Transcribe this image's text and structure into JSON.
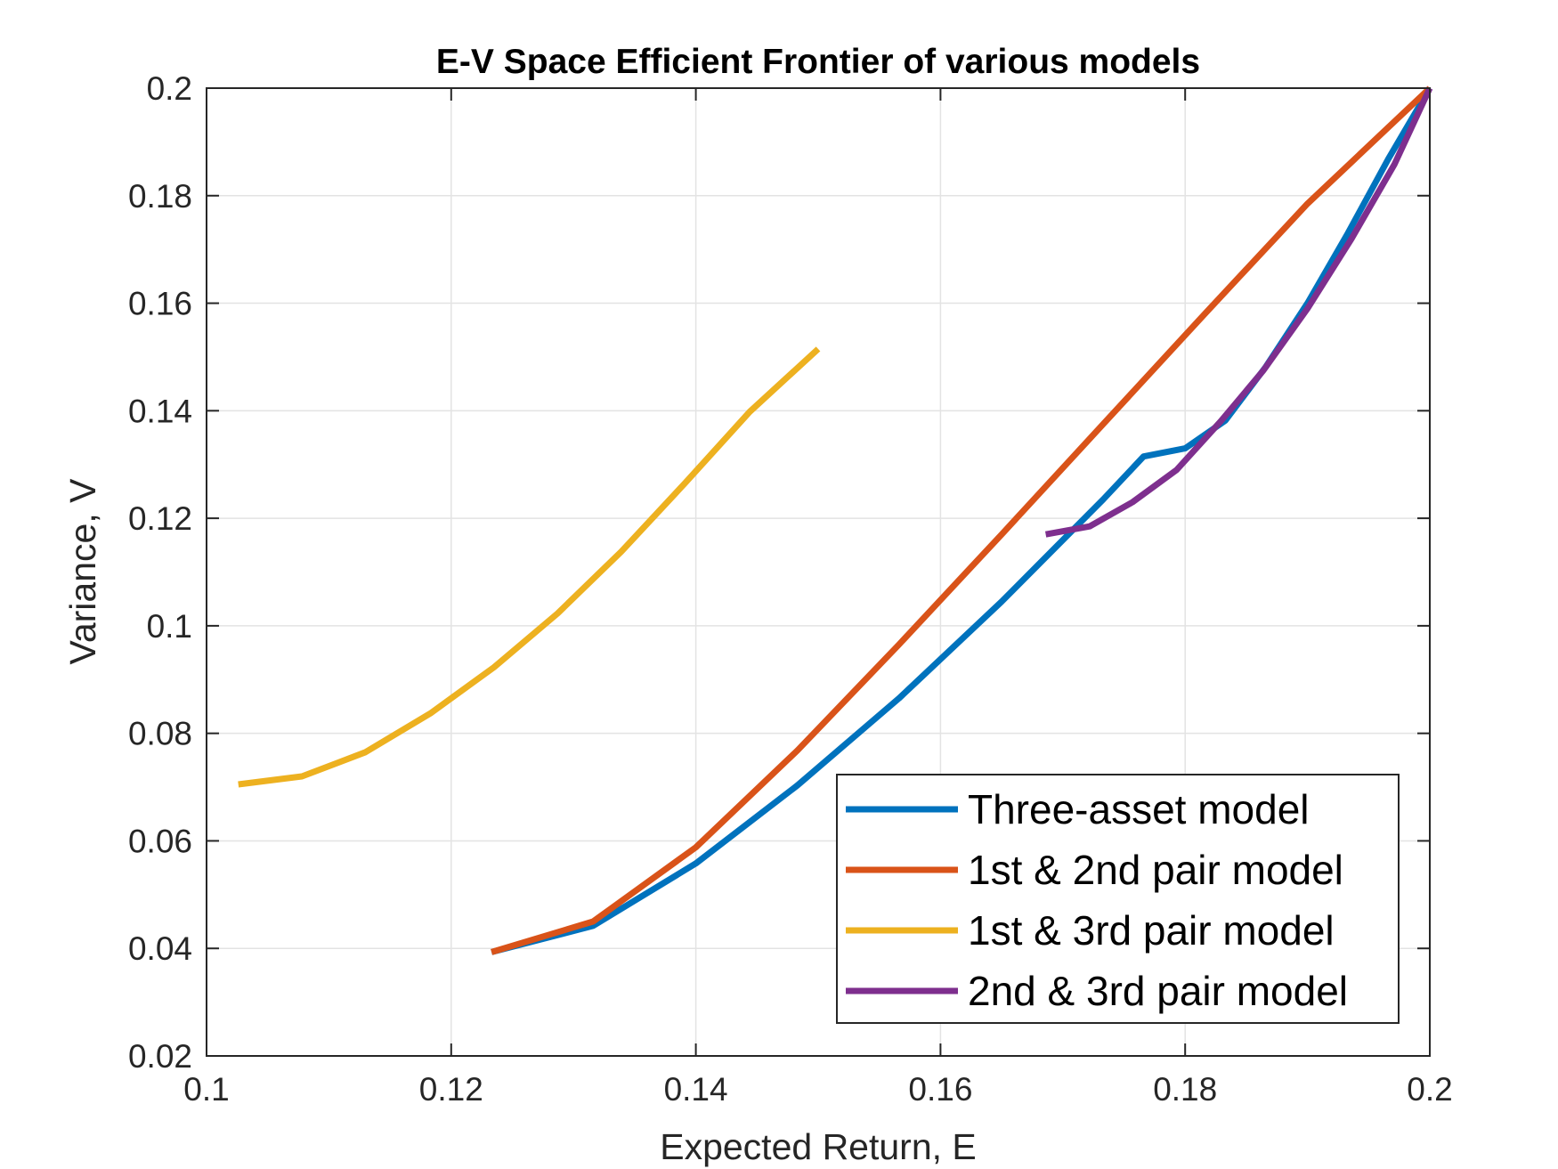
{
  "chart_data": {
    "type": "line",
    "title": "E-V Space Efficient Frontier of various models",
    "xlabel": "Expected Return, E",
    "ylabel": "Variance, V",
    "xlim": [
      0.1,
      0.2
    ],
    "ylim": [
      0.02,
      0.2
    ],
    "xticks": [
      0.1,
      0.12,
      0.14,
      0.16,
      0.18,
      0.2
    ],
    "xtick_labels": [
      "0.1",
      "0.12",
      "0.14",
      "0.16",
      "0.18",
      "0.2"
    ],
    "yticks": [
      0.02,
      0.04,
      0.06,
      0.08,
      0.1,
      0.12,
      0.14,
      0.16,
      0.18,
      0.2
    ],
    "ytick_labels": [
      "0.02",
      "0.04",
      "0.06",
      "0.08",
      "0.1",
      "0.12",
      "0.14",
      "0.16",
      "0.18",
      "0.2"
    ],
    "grid": true,
    "legend_position": "bottom-right",
    "series": [
      {
        "name": "Three-asset model",
        "color": "#0072BD",
        "x": [
          0.1233,
          0.1316,
          0.14,
          0.1483,
          0.1566,
          0.165,
          0.1733,
          0.1766,
          0.18,
          0.1833,
          0.1866,
          0.19,
          0.1933,
          0.1966,
          0.2
        ],
        "y": [
          0.0393,
          0.0442,
          0.0558,
          0.0703,
          0.0865,
          0.1045,
          0.1235,
          0.1315,
          0.133,
          0.1382,
          0.1482,
          0.16,
          0.173,
          0.1868,
          0.2
        ]
      },
      {
        "name": "1st & 2nd pair model",
        "color": "#D95319",
        "x": [
          0.1233,
          0.1316,
          0.14,
          0.1483,
          0.1566,
          0.165,
          0.1733,
          0.1816,
          0.19,
          0.2
        ],
        "y": [
          0.0393,
          0.045,
          0.0588,
          0.0768,
          0.0965,
          0.117,
          0.1375,
          0.158,
          0.1785,
          0.2
        ]
      },
      {
        "name": "1st & 3rd pair model",
        "color": "#EDB120",
        "x": [
          0.1026,
          0.1078,
          0.113,
          0.1183,
          0.1235,
          0.1287,
          0.1339,
          0.1391,
          0.1444,
          0.15
        ],
        "y": [
          0.0705,
          0.072,
          0.0765,
          0.0837,
          0.0923,
          0.1023,
          0.1138,
          0.1265,
          0.1398,
          0.1515
        ]
      },
      {
        "name": "2nd & 3rd pair model",
        "color": "#7E2F8E",
        "x": [
          0.1686,
          0.1722,
          0.1757,
          0.1793,
          0.1829,
          0.1864,
          0.19,
          0.1936,
          0.1971,
          0.2
        ],
        "y": [
          0.117,
          0.1185,
          0.123,
          0.129,
          0.138,
          0.1475,
          0.159,
          0.172,
          0.1858,
          0.2
        ]
      }
    ]
  }
}
